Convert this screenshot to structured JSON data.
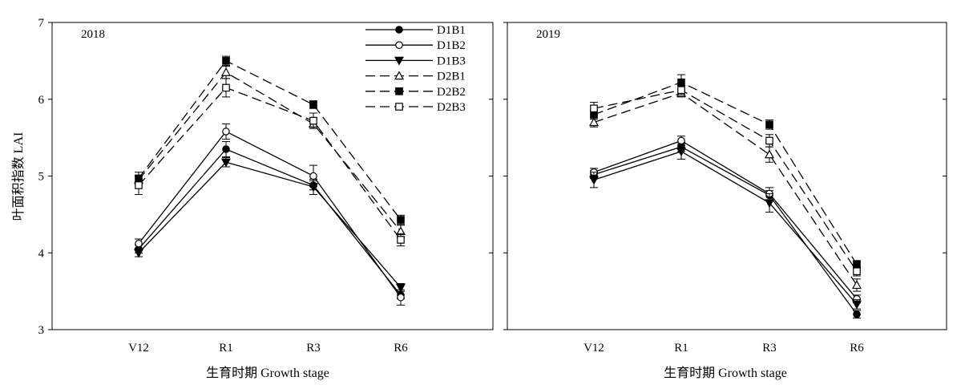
{
  "figure": {
    "ylabel": "叶面积指数 LAI",
    "xlabel": "生育时期 Growth stage"
  },
  "chart_data": [
    {
      "type": "line",
      "title": "2018",
      "categories": [
        "V12",
        "R1",
        "R3",
        "R6"
      ],
      "ylim": [
        3,
        7
      ],
      "yticks": [
        3,
        4,
        5,
        6,
        7
      ],
      "xlabel": "生育时期 Growth stage",
      "ylabel": "叶面积指数 LAI",
      "legend_position": "top-right",
      "grid": false,
      "series": [
        {
          "name": "D1B1",
          "marker": "filled-circle",
          "dash": "solid",
          "values": [
            4.05,
            5.35,
            4.88,
            3.45
          ],
          "errors": [
            0.05,
            0.1,
            0.06,
            0.05
          ]
        },
        {
          "name": "D1B2",
          "marker": "open-circle",
          "dash": "solid",
          "values": [
            4.12,
            5.58,
            5.0,
            3.42
          ],
          "errors": [
            0.06,
            0.1,
            0.14,
            0.1
          ]
        },
        {
          "name": "D1B3",
          "marker": "filled-triangle-down",
          "dash": "solid",
          "values": [
            4.0,
            5.18,
            4.86,
            3.55
          ],
          "errors": [
            0.05,
            0.06,
            0.1,
            0.05
          ]
        },
        {
          "name": "D2B1",
          "marker": "open-triangle",
          "dash": "dashed",
          "values": [
            4.95,
            6.35,
            5.68,
            4.28
          ],
          "errors": [
            0.06,
            0.08,
            0.06,
            0.08
          ]
        },
        {
          "name": "D2B2",
          "marker": "filled-square",
          "dash": "dashed",
          "values": [
            4.97,
            6.5,
            5.93,
            4.43
          ],
          "errors": [
            0.08,
            0.06,
            0.05,
            0.06
          ]
        },
        {
          "name": "D2B3",
          "marker": "open-square",
          "dash": "dashed",
          "values": [
            4.88,
            6.15,
            5.72,
            4.17
          ],
          "errors": [
            0.12,
            0.12,
            0.1,
            0.08
          ]
        }
      ]
    },
    {
      "type": "line",
      "title": "2019",
      "categories": [
        "V12",
        "R1",
        "R3",
        "R6"
      ],
      "ylim": [
        3,
        7
      ],
      "yticks": [
        3,
        4,
        5,
        6,
        7
      ],
      "xlabel": "生育时期 Growth stage",
      "grid": false,
      "series": [
        {
          "name": "D1B1",
          "marker": "filled-circle",
          "dash": "solid",
          "values": [
            5.02,
            5.38,
            4.75,
            3.2
          ],
          "errors": [
            0.05,
            0.06,
            0.06,
            0.05
          ]
        },
        {
          "name": "D1B2",
          "marker": "open-circle",
          "dash": "solid",
          "values": [
            5.05,
            5.46,
            4.77,
            3.4
          ],
          "errors": [
            0.05,
            0.06,
            0.08,
            0.05
          ]
        },
        {
          "name": "D1B3",
          "marker": "filled-triangle-down",
          "dash": "solid",
          "values": [
            4.95,
            5.32,
            4.65,
            3.33
          ],
          "errors": [
            0.1,
            0.1,
            0.12,
            0.06
          ]
        },
        {
          "name": "D2B1",
          "marker": "open-triangle",
          "dash": "dashed",
          "values": [
            5.7,
            6.08,
            5.28,
            3.58
          ],
          "errors": [
            0.06,
            0.05,
            0.1,
            0.08
          ]
        },
        {
          "name": "D2B2",
          "marker": "filled-square",
          "dash": "dashed",
          "values": [
            5.8,
            6.22,
            5.67,
            3.85
          ],
          "errors": [
            0.06,
            0.1,
            0.06,
            0.05
          ]
        },
        {
          "name": "D2B3",
          "marker": "open-square",
          "dash": "dashed",
          "values": [
            5.88,
            6.12,
            5.46,
            3.76
          ],
          "errors": [
            0.08,
            0.06,
            0.08,
            0.06
          ]
        }
      ]
    }
  ]
}
